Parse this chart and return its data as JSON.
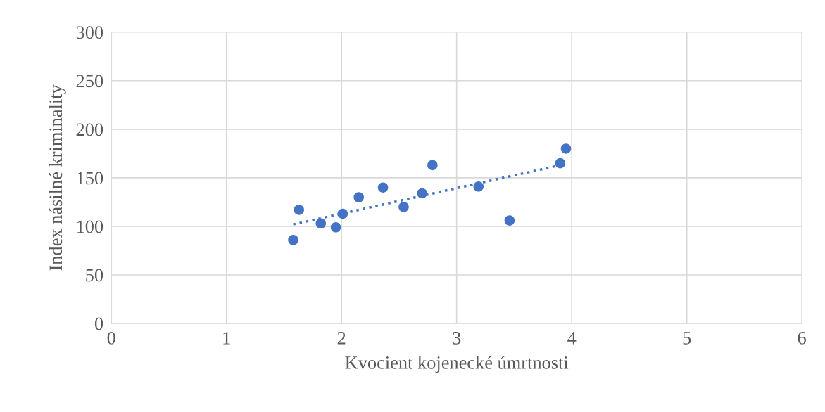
{
  "chart_data": {
    "type": "scatter",
    "xlabel": "Kvocient kojenecké úmrtnosti",
    "ylabel": "Index násilné kriminality",
    "xlim": [
      0,
      6
    ],
    "xticks": [
      0,
      1,
      2,
      3,
      4,
      5,
      6
    ],
    "ylim": [
      0,
      300
    ],
    "yticks": [
      0,
      50,
      100,
      150,
      200,
      250,
      300
    ],
    "grid": true,
    "marker": "circle",
    "series": [
      {
        "color": "#4472c4",
        "x": [
          1.58,
          1.63,
          1.82,
          1.95,
          2.01,
          2.15,
          2.36,
          2.54,
          2.7,
          2.79,
          3.19,
          3.46,
          3.9,
          3.95
        ],
        "values": [
          86,
          117,
          103,
          99,
          113,
          130,
          140,
          120,
          134,
          163,
          141,
          106,
          165,
          180
        ]
      },
      {
        "type": "line",
        "color": "#4472c4",
        "line_style": "dotted",
        "marker": "none",
        "x": [
          1.58,
          3.9
        ],
        "values": [
          102,
          163
        ]
      }
    ]
  }
}
